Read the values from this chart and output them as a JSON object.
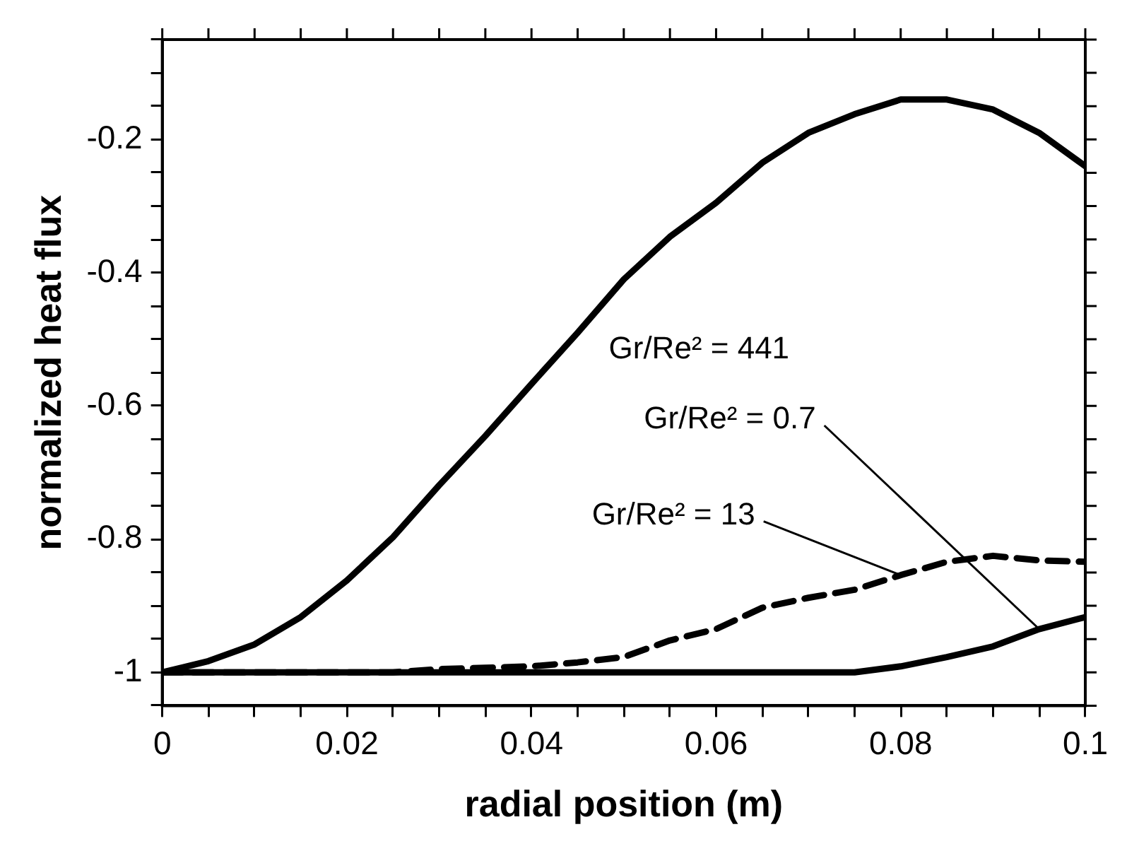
{
  "chart_data": {
    "type": "line",
    "xlabel": "radial position (m)",
    "ylabel": "normalized heat flux",
    "x": [
      0,
      0.005,
      0.01,
      0.015,
      0.02,
      0.025,
      0.03,
      0.035,
      0.04,
      0.045,
      0.05,
      0.055,
      0.06,
      0.065,
      0.07,
      0.075,
      0.08,
      0.085,
      0.09,
      0.095,
      0.1
    ],
    "series": [
      {
        "name": "Gr/Re² = 441",
        "color": "#000000",
        "line_style": "solid",
        "values": [
          -1,
          -0.983,
          -0.958,
          -0.917,
          -0.862,
          -0.797,
          -0.719,
          -0.645,
          -0.567,
          -0.49,
          -0.41,
          -0.346,
          -0.295,
          -0.235,
          -0.19,
          -0.162,
          -0.14,
          -0.14,
          -0.155,
          -0.19,
          -0.24
        ]
      },
      {
        "name": "Gr/Re² = 0.7",
        "color": "#000000",
        "line_style": "solid",
        "values": [
          -1,
          -1,
          -1,
          -1,
          -1,
          -1,
          -1,
          -1,
          -1,
          -1,
          -1,
          -1,
          -1,
          -1,
          -1,
          -1,
          -0.991,
          -0.977,
          -0.961,
          -0.935,
          -0.917
        ]
      },
      {
        "name": "Gr/Re² = 13",
        "color": "#000000",
        "line_style": "dashed",
        "values": [
          -1,
          -1,
          -1,
          -1,
          -1,
          -1,
          -0.995,
          -0.993,
          -0.991,
          -0.985,
          -0.977,
          -0.952,
          -0.935,
          -0.903,
          -0.888,
          -0.876,
          -0.854,
          -0.834,
          -0.825,
          -0.832,
          -0.834
        ]
      }
    ],
    "xlim": [
      0,
      0.1
    ],
    "ylim": [
      -1.05,
      -0.05
    ],
    "xticks": [
      0,
      {
        "value": 0.005,
        "label": null
      },
      {
        "value": 0.01,
        "label": null
      },
      {
        "value": 0.015,
        "label": null
      },
      0.02,
      {
        "value": 0.025,
        "label": null
      },
      {
        "value": 0.03,
        "label": null
      },
      {
        "value": 0.035,
        "label": null
      },
      0.04,
      {
        "value": 0.045,
        "label": null
      },
      {
        "value": 0.05,
        "label": null
      },
      {
        "value": 0.055,
        "label": null
      },
      0.06,
      {
        "value": 0.065,
        "label": null
      },
      {
        "value": 0.07,
        "label": null
      },
      {
        "value": 0.075,
        "label": null
      },
      0.08,
      {
        "value": 0.085,
        "label": null
      },
      {
        "value": 0.09,
        "label": null
      },
      {
        "value": 0.095,
        "label": null
      },
      0.1
    ],
    "yticks": [
      {
        "value": -1.05,
        "label": null
      },
      -1,
      {
        "value": -0.95,
        "label": null
      },
      {
        "value": -0.9,
        "label": null
      },
      {
        "value": -0.85,
        "label": null
      },
      -0.8,
      {
        "value": -0.75,
        "label": null
      },
      {
        "value": -0.7,
        "label": null
      },
      {
        "value": -0.65,
        "label": null
      },
      -0.6,
      {
        "value": -0.55,
        "label": null
      },
      {
        "value": -0.5,
        "label": null
      },
      {
        "value": -0.45,
        "label": null
      },
      -0.4,
      {
        "value": -0.35,
        "label": null
      },
      {
        "value": -0.3,
        "label": null
      },
      {
        "value": -0.25,
        "label": null
      },
      -0.2,
      {
        "value": -0.15,
        "label": null
      },
      {
        "value": -0.1,
        "label": null
      },
      {
        "value": -0.05,
        "label": null
      }
    ],
    "grid": false,
    "legend": false,
    "marker": "none"
  }
}
